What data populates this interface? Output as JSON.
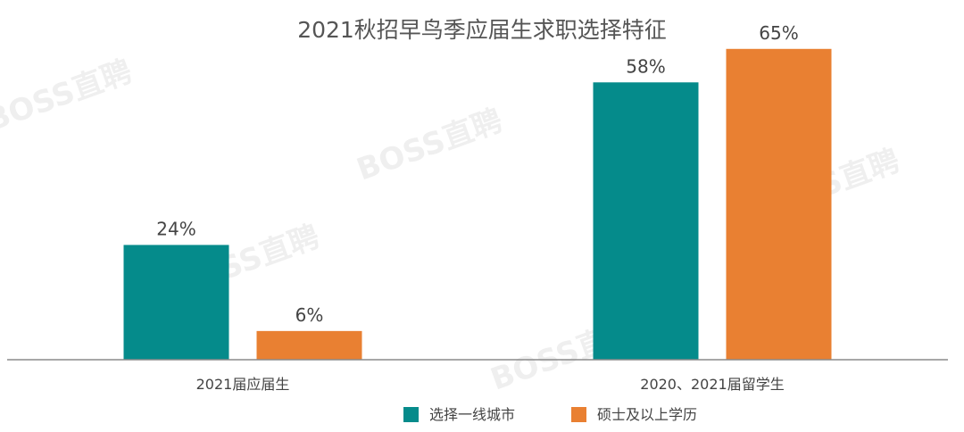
{
  "watermark": "BOSS直聘",
  "chart_data": {
    "type": "bar",
    "title": "2021秋招早鸟季应届生求职选择特征",
    "categories": [
      "2021届应届生",
      "2020、2021届留学生"
    ],
    "series": [
      {
        "name": "选择一线城市",
        "values": [
          24,
          58
        ],
        "color": "#058B8B"
      },
      {
        "name": "硕士及以上学历",
        "values": [
          6,
          65
        ],
        "color": "#E98032"
      }
    ],
    "value_suffix": "%",
    "ylim": [
      0,
      70
    ],
    "grid": false,
    "legend": "bottom-center"
  }
}
